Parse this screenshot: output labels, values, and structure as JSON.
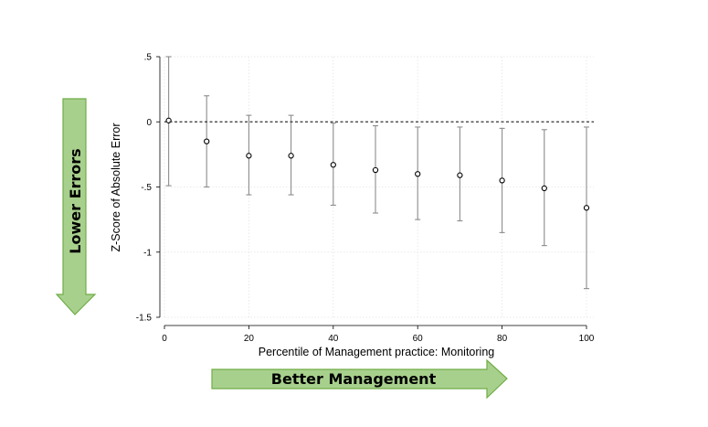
{
  "chart_data": {
    "type": "scatter",
    "xlabel": "Percentile of Management practice: Monitoring",
    "ylabel": "Z-Score of Absolute Error",
    "xlim": [
      0,
      100
    ],
    "ylim": [
      -1.5,
      0.5
    ],
    "x_ticks": [
      0,
      20,
      40,
      60,
      80,
      100
    ],
    "y_ticks": [
      0.5,
      0,
      -0.5,
      -1,
      -1.5
    ],
    "y_tick_labels": [
      ".5",
      "0",
      "-.5",
      "-1",
      "-1.5"
    ],
    "grid": true,
    "reference_line": {
      "y": 0,
      "style": "dashed"
    },
    "series": [
      {
        "x": [
          1,
          10,
          20,
          30,
          40,
          50,
          60,
          70,
          80,
          90,
          100
        ],
        "values": [
          0.01,
          -0.15,
          -0.26,
          -0.26,
          -0.33,
          -0.37,
          -0.4,
          -0.41,
          -0.45,
          -0.51,
          -0.66
        ],
        "ci_low": [
          -0.49,
          -0.5,
          -0.56,
          -0.56,
          -0.64,
          -0.7,
          -0.75,
          -0.76,
          -0.85,
          -0.95,
          -1.28
        ],
        "ci_high": [
          0.5,
          0.2,
          0.05,
          0.05,
          -0.01,
          -0.03,
          -0.04,
          -0.04,
          -0.05,
          -0.06,
          -0.04
        ]
      }
    ],
    "colors": {
      "point": "#000000",
      "errorbar": "#8c8c8c",
      "arrow_fill": "#a8d08d",
      "arrow_stroke": "#70ad47"
    }
  },
  "annotations": {
    "vertical_arrow": "Lower Errors",
    "horizontal_arrow": "Better Management"
  }
}
